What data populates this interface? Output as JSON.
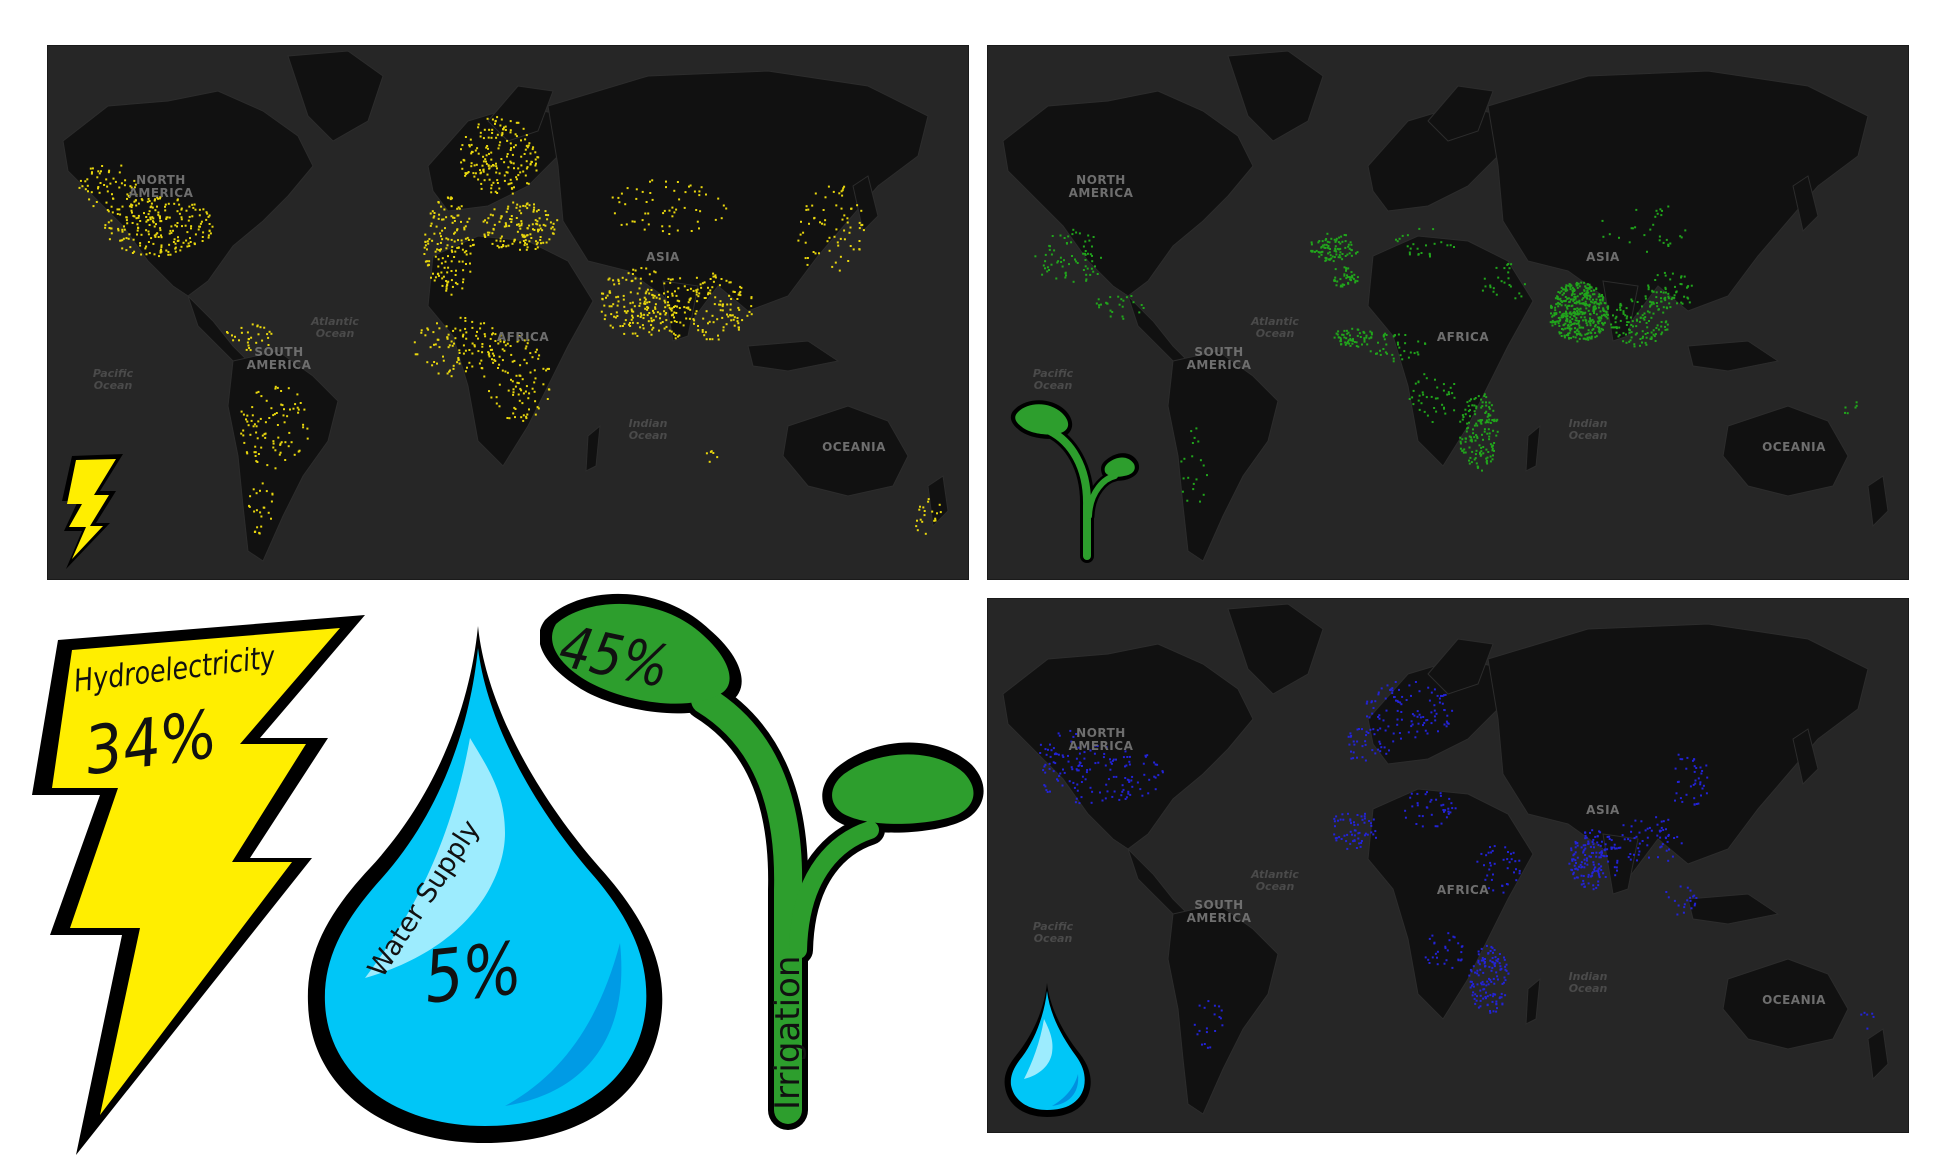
{
  "maps": [
    {
      "id": "hydroelectricity",
      "dot_color": "#e9d70e",
      "icon": "lightning-bolt-icon",
      "regions": [
        "NORTH\nAMERICA",
        "SOUTH\nAMERICA",
        "AFRICA",
        "ASIA",
        "OCEANIA"
      ],
      "oceans": [
        "Atlantic\nOcean",
        "Pacific\nOcean",
        "Indian\nOcean"
      ]
    },
    {
      "id": "irrigation",
      "dot_color": "#21a51c",
      "icon": "sprout-icon",
      "regions": [
        "NORTH\nAMERICA",
        "SOUTH\nAMERICA",
        "AFRICA",
        "ASIA",
        "OCEANIA"
      ],
      "oceans": [
        "Atlantic\nOcean",
        "Pacific\nOcean",
        "Indian\nOcean"
      ]
    },
    {
      "id": "water-supply",
      "dot_color": "#2323d8",
      "icon": "water-drop-icon",
      "regions": [
        "NORTH\nAMERICA",
        "SOUTH\nAMERICA",
        "AFRICA",
        "ASIA",
        "OCEANIA"
      ],
      "oceans": [
        "Atlantic\nOcean",
        "Pacific\nOcean",
        "Indian\nOcean"
      ]
    }
  ],
  "summary": {
    "hydroelectricity": {
      "label": "Hydroelectricity",
      "percent": "34%",
      "color": "#ffee00"
    },
    "water_supply": {
      "label": "Water Supply",
      "percent": "5%",
      "color": "#00c6f7"
    },
    "irrigation": {
      "label": "Irrigation",
      "percent": "45%",
      "color": "#2d9e2d"
    }
  }
}
